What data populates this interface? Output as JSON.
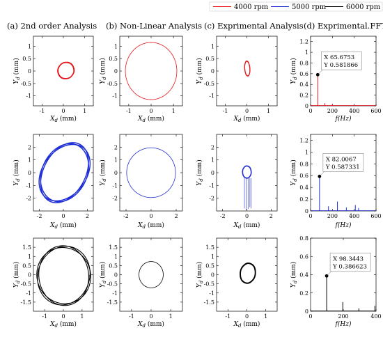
{
  "legend": [
    {
      "label": "4000 rpm",
      "color": "#e8141b"
    },
    {
      "label": "5000 rpm",
      "color": "#1f2fd6"
    },
    {
      "label": "6000 rpm",
      "color": "#000000"
    }
  ],
  "column_titles": [
    "(a) 2nd order Analysis",
    "(b) Non-Linear Analysis",
    "(c) Exprimental Analysis",
    "(d) Exprimental.FFT"
  ],
  "chart_data": [
    {
      "type": "line",
      "row": 0,
      "col": 0,
      "series_color": "#e8141b",
      "xlabel": "X_d (mm)",
      "ylabel": "Y_d (mm)",
      "xlim": [
        -1.4,
        1.4
      ],
      "ylim": [
        -1.4,
        1.4
      ],
      "xticks": [
        -1,
        0,
        1
      ],
      "yticks": [
        -1,
        -0.5,
        0,
        0.5,
        1
      ],
      "orbit": {
        "center": [
          0.12,
          0.02
        ],
        "radius_x": 0.38,
        "radius_y": 0.33,
        "tilt_deg": 10,
        "turns": 3
      }
    },
    {
      "type": "line",
      "row": 0,
      "col": 1,
      "series_color": "#e8141b",
      "xlabel": "X_d (mm)",
      "ylabel": "Y_d (mm)",
      "xlim": [
        -1.4,
        1.4
      ],
      "ylim": [
        -1.4,
        1.4
      ],
      "xticks": [
        -1,
        0,
        1
      ],
      "yticks": [
        -1,
        -0.5,
        0,
        0.5,
        1
      ],
      "orbit": {
        "center": [
          0,
          0
        ],
        "radius_x": 1.15,
        "radius_y": 1.15,
        "tilt_deg": 0,
        "turns": 1
      }
    },
    {
      "type": "line",
      "row": 0,
      "col": 2,
      "series_color": "#e8141b",
      "xlabel": "X_d (mm)",
      "ylabel": "Y_d (mm)",
      "xlim": [
        -1.4,
        1.4
      ],
      "ylim": [
        -1.4,
        1.4
      ],
      "xticks": [
        -1,
        0,
        1
      ],
      "yticks": [
        -1,
        -0.5,
        0,
        0.5,
        1
      ],
      "orbit": {
        "center": [
          0.02,
          0.1
        ],
        "radius_x": 0.12,
        "radius_y": 0.3,
        "tilt_deg": 5,
        "turns": 3
      }
    },
    {
      "type": "line",
      "row": 0,
      "col": 3,
      "series_color": "#e8141b",
      "xlabel": "f(Hz)",
      "ylabel": "Y_d (mm)",
      "xlim": [
        0,
        600
      ],
      "ylim": [
        0,
        1.3
      ],
      "xticks": [
        0,
        200,
        400,
        600
      ],
      "yticks": [
        0,
        0.2,
        0.4,
        0.6,
        0.8,
        1,
        1.2
      ],
      "peaks": [
        [
          65.6753,
          0.581866
        ],
        [
          131,
          0.05
        ],
        [
          197,
          0.02
        ],
        [
          263,
          0.01
        ]
      ],
      "annotation": {
        "x_text": "X 65.6753",
        "y_text": "Y 0.581866",
        "x": 65.6753,
        "y": 0.581866
      }
    },
    {
      "type": "line",
      "row": 1,
      "col": 0,
      "series_color": "#1f2fd6",
      "xlabel": "X_d (mm)",
      "ylabel": "Y_d (mm)",
      "xlim": [
        -2.5,
        2.5
      ],
      "ylim": [
        -3,
        3
      ],
      "xticks": [
        -2,
        0,
        2
      ],
      "yticks": [
        -2,
        -1,
        0,
        1,
        2
      ],
      "orbit": {
        "center": [
          0.1,
          0
        ],
        "radius_x": 1.8,
        "radius_y": 2.5,
        "tilt_deg": -35,
        "turns": 6
      }
    },
    {
      "type": "line",
      "row": 1,
      "col": 1,
      "series_color": "#1f2fd6",
      "xlabel": "X_d (mm)",
      "ylabel": "Y_d (mm)",
      "xlim": [
        -2.5,
        2.5
      ],
      "ylim": [
        -3,
        3
      ],
      "xticks": [
        -2,
        0,
        2
      ],
      "yticks": [
        -2,
        -1,
        0,
        1,
        2
      ],
      "orbit": {
        "center": [
          0,
          0
        ],
        "radius_x": 1.95,
        "radius_y": 1.95,
        "tilt_deg": 0,
        "turns": 1
      }
    },
    {
      "type": "line",
      "row": 1,
      "col": 2,
      "series_color": "#1f2fd6",
      "xlabel": "X_d (mm)",
      "ylabel": "Y_d (mm)",
      "xlim": [
        -2.5,
        2.5
      ],
      "ylim": [
        -3,
        3
      ],
      "xticks": [
        -2,
        0,
        2
      ],
      "yticks": [
        -2,
        -1,
        0,
        1,
        2
      ],
      "orbit": {
        "center": [
          0,
          0.05
        ],
        "radius_x": 0.36,
        "radius_y": 0.48,
        "tilt_deg": 0,
        "turns": 6
      },
      "spikes": [
        [
          -0.2,
          -2.8
        ],
        [
          -0.05,
          -2.9
        ],
        [
          0.1,
          -2.85
        ],
        [
          0.25,
          -2.7
        ],
        [
          0.35,
          -2.8
        ]
      ]
    },
    {
      "type": "line",
      "row": 1,
      "col": 3,
      "series_color": "#1f2fd6",
      "xlabel": "f(Hz)",
      "ylabel": "Y_d (mm)",
      "xlim": [
        0,
        600
      ],
      "ylim": [
        0,
        1.3
      ],
      "xticks": [
        0,
        200,
        400,
        600
      ],
      "yticks": [
        0,
        0.2,
        0.4,
        0.6,
        0.8,
        1,
        1.2
      ],
      "peaks": [
        [
          82.0067,
          0.587331
        ],
        [
          164,
          0.08
        ],
        [
          246,
          0.16
        ],
        [
          328,
          0.06
        ],
        [
          410,
          0.1
        ],
        [
          440,
          0.05
        ]
      ],
      "annotation": {
        "x_text": "X 82.0067",
        "y_text": "Y 0.587331",
        "x": 82.0067,
        "y": 0.587331
      }
    },
    {
      "type": "line",
      "row": 2,
      "col": 0,
      "series_color": "#000000",
      "xlabel": "X_d (mm)",
      "ylabel": "Y_d (mm)",
      "xlim": [
        -1.6,
        1.6
      ],
      "ylim": [
        -2,
        2
      ],
      "xticks": [
        -1,
        0,
        1
      ],
      "yticks": [
        -1.5,
        -1,
        -0.5,
        0,
        0.5,
        1,
        1.5
      ],
      "orbit": {
        "center": [
          0.02,
          -0.05
        ],
        "radius_x": 1.4,
        "radius_y": 1.6,
        "tilt_deg": 0,
        "turns": 3
      }
    },
    {
      "type": "line",
      "row": 2,
      "col": 1,
      "series_color": "#000000",
      "xlabel": "X_d (mm)",
      "ylabel": "Y_d (mm)",
      "xlim": [
        -1.6,
        1.6
      ],
      "ylim": [
        -2,
        2
      ],
      "xticks": [
        -1,
        0,
        1
      ],
      "yticks": [
        -1.5,
        -1,
        -0.5,
        0,
        0.5,
        1,
        1.5
      ],
      "orbit": {
        "center": [
          0,
          0
        ],
        "radius_x": 0.62,
        "radius_y": 0.72,
        "tilt_deg": 0,
        "turns": 1
      }
    },
    {
      "type": "line",
      "row": 2,
      "col": 2,
      "series_color": "#000000",
      "xlabel": "X_d (mm)",
      "ylabel": "Y_d (mm)",
      "xlim": [
        -1.6,
        1.6
      ],
      "ylim": [
        -2,
        2
      ],
      "xticks": [
        -1,
        0,
        1
      ],
      "yticks": [
        -1.5,
        -1,
        -0.5,
        0,
        0.5,
        1,
        1.5
      ],
      "orbit": {
        "center": [
          0.05,
          0.08
        ],
        "radius_x": 0.4,
        "radius_y": 0.55,
        "tilt_deg": -8,
        "turns": 4
      }
    },
    {
      "type": "line",
      "row": 2,
      "col": 3,
      "series_color": "#000000",
      "xlabel": "f(Hz)",
      "ylabel": "Y_d (mm)",
      "xlim": [
        0,
        400
      ],
      "ylim": [
        0,
        0.8
      ],
      "xticks": [
        0,
        200,
        400
      ],
      "yticks": [
        0,
        0.2,
        0.4,
        0.6,
        0.8
      ],
      "peaks": [
        [
          98.3443,
          0.386623
        ],
        [
          197,
          0.1
        ],
        [
          295,
          0.03
        ],
        [
          393,
          0.06
        ]
      ],
      "annotation": {
        "x_text": "X 98.3443",
        "y_text": "Y 0.386623",
        "x": 98.3443,
        "y": 0.386623
      }
    }
  ]
}
